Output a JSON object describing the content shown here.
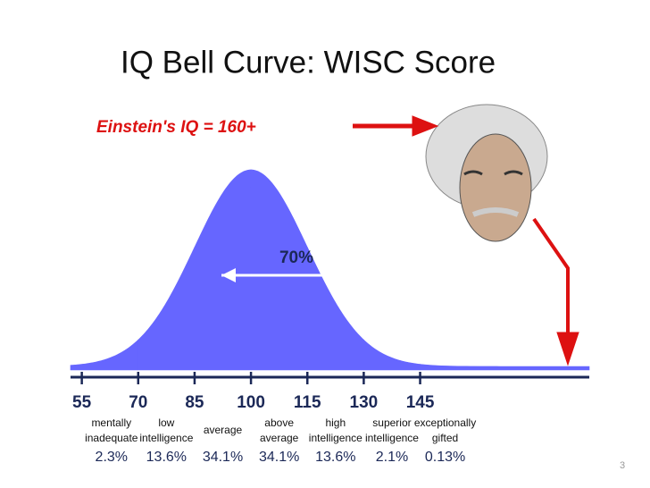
{
  "chart_data": {
    "type": "bell",
    "title": "IQ Bell Curve: WISC Score",
    "annotation": "Einstein's IQ = 160+",
    "center_label": "70%",
    "page_number": "3",
    "xlim": [
      52,
      190
    ],
    "xticks": [
      55,
      70,
      85,
      100,
      115,
      130,
      145
    ],
    "categories": [
      [
        "mentally",
        "inadequate"
      ],
      [
        "low",
        "intelligence"
      ],
      [
        "average"
      ],
      [
        "above",
        "average"
      ],
      [
        "high",
        "intelligence"
      ],
      [
        "superior",
        "intelligence"
      ],
      [
        "exceptionally",
        "gifted"
      ]
    ],
    "values": [
      2.3,
      13.6,
      34.1,
      34.1,
      13.6,
      2.1,
      0.13
    ],
    "value_labels": [
      "2.3%",
      "13.6%",
      "34.1%",
      "34.1%",
      "13.6%",
      "2.1%",
      "0.13%"
    ],
    "color": "#6666ff"
  }
}
